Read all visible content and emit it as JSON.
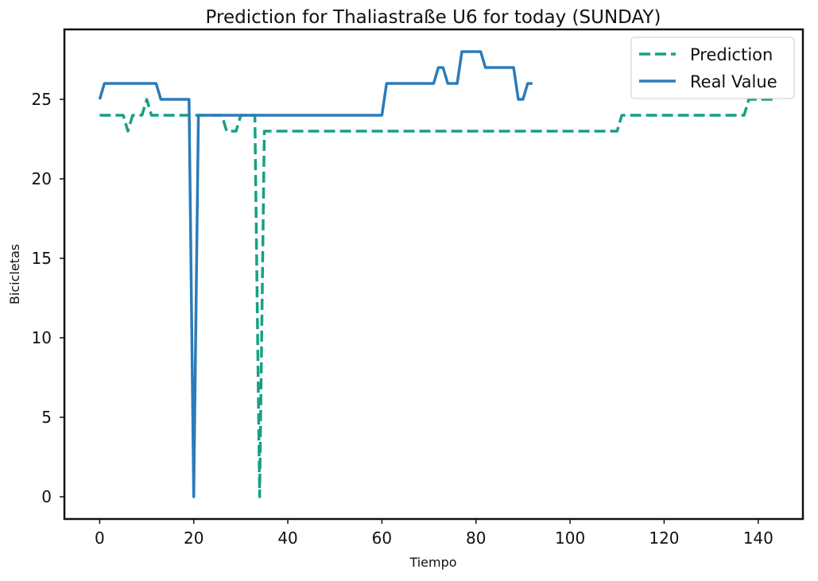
{
  "chart_data": {
    "type": "line",
    "title": "Prediction for Thaliastraße U6 for today (SUNDAY)",
    "xlabel": "Tiempo",
    "ylabel": "Bicicletas",
    "xlim": [
      -7.5,
      149.5
    ],
    "ylim": [
      -1.4,
      29.4
    ],
    "xticks": [
      0,
      20,
      40,
      60,
      80,
      100,
      120,
      140
    ],
    "yticks": [
      0,
      5,
      10,
      15,
      20,
      25
    ],
    "grid": false,
    "legend_position": "top-right",
    "series": [
      {
        "name": "Prediction",
        "color": "#17a085",
        "style": "dashed",
        "x": [
          0,
          1,
          2,
          3,
          4,
          5,
          6,
          7,
          8,
          9,
          10,
          11,
          12,
          13,
          14,
          15,
          16,
          17,
          18,
          19,
          20,
          21,
          22,
          23,
          24,
          25,
          26,
          27,
          28,
          29,
          30,
          31,
          32,
          33,
          34,
          35,
          40,
          60,
          80,
          100,
          110,
          111,
          120,
          130,
          137,
          138,
          139,
          140,
          141,
          142,
          143,
          144
        ],
        "y": [
          24,
          24,
          24,
          24,
          24,
          24,
          23,
          24,
          24,
          24,
          25,
          24,
          24,
          24,
          24,
          24,
          24,
          24,
          24,
          24,
          24,
          24,
          24,
          24,
          24,
          24,
          24,
          23,
          23,
          23,
          24,
          24,
          24,
          24,
          0,
          23,
          23,
          23,
          23,
          23,
          23,
          24,
          24,
          24,
          24,
          25,
          25,
          25,
          25,
          25,
          25,
          25
        ]
      },
      {
        "name": "Real Value",
        "color": "#2b7bba",
        "style": "solid",
        "x": [
          0,
          1,
          2,
          5,
          10,
          12,
          13,
          15,
          19,
          20,
          21,
          25,
          30,
          40,
          50,
          60,
          61,
          65,
          71,
          72,
          73,
          74,
          75,
          76,
          77,
          80,
          81,
          82,
          85,
          88,
          89,
          90,
          91,
          92
        ],
        "y": [
          25,
          26,
          26,
          26,
          26,
          26,
          25,
          25,
          25,
          0,
          24,
          24,
          24,
          24,
          24,
          24,
          26,
          26,
          26,
          27,
          27,
          26,
          26,
          26,
          28,
          28,
          28,
          27,
          27,
          27,
          25,
          25,
          26,
          26
        ]
      }
    ]
  }
}
